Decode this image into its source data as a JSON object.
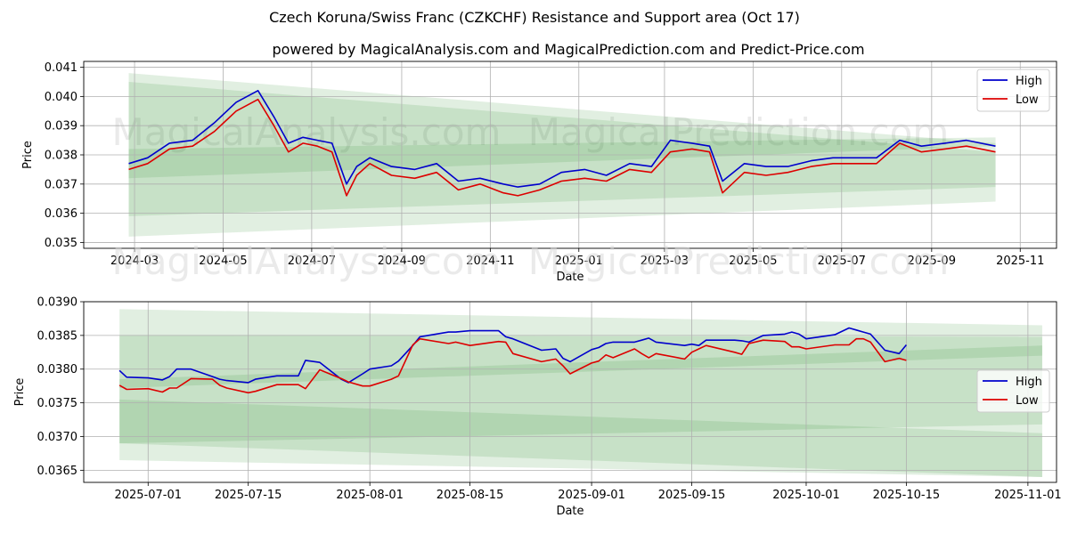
{
  "title": "Czech Koruna/Swiss Franc (CZKCHF) Resistance and Support area (Oct 17)",
  "subtitle": "powered by MagicalAnalysis.com and MagicalPrediction.com and Predict-Price.com",
  "watermarks": [
    "MagicalAnalysis.com",
    "MagicalPrediction.com"
  ],
  "colors": {
    "high": "#0000cc",
    "low": "#dd0000",
    "band": "#2e8b2e"
  },
  "chart_data": [
    {
      "type": "line",
      "xlabel": "Date",
      "ylabel": "Price",
      "xlim": [
        "2024-01-26",
        "2025-11-26"
      ],
      "ylim": [
        0.0348,
        0.0412
      ],
      "xticks": [
        "2024-03",
        "2024-05",
        "2024-07",
        "2024-09",
        "2024-11",
        "2025-01",
        "2025-03",
        "2025-05",
        "2025-07",
        "2025-09",
        "2025-11"
      ],
      "yticks": [
        "0.035",
        "0.036",
        "0.037",
        "0.038",
        "0.039",
        "0.040",
        "0.041"
      ],
      "legend": [
        "High",
        "Low"
      ],
      "legend_position": "top-right",
      "grid": true,
      "bands": [
        {
          "x": [
            "2024-02-26",
            "2025-10-15"
          ],
          "top": [
            0.0408,
            0.0384
          ],
          "bottom": [
            0.0352,
            0.0364
          ]
        },
        {
          "x": [
            "2024-02-26",
            "2025-10-15"
          ],
          "top": [
            0.0405,
            0.0381
          ],
          "bottom": [
            0.0359,
            0.0369
          ]
        },
        {
          "x": [
            "2024-02-26",
            "2025-10-15"
          ],
          "top": [
            0.0382,
            0.0386
          ],
          "bottom": [
            0.0372,
            0.0383
          ]
        }
      ],
      "series": [
        {
          "name": "High",
          "x": [
            "2024-02-26",
            "2024-03-10",
            "2024-03-25",
            "2024-04-10",
            "2024-04-25",
            "2024-05-10",
            "2024-05-25",
            "2024-06-05",
            "2024-06-15",
            "2024-06-25",
            "2024-07-05",
            "2024-07-15",
            "2024-07-25",
            "2024-08-01",
            "2024-08-10",
            "2024-08-25",
            "2024-09-10",
            "2024-09-25",
            "2024-10-10",
            "2024-10-25",
            "2024-11-10",
            "2024-11-20",
            "2024-12-05",
            "2024-12-20",
            "2025-01-05",
            "2025-01-20",
            "2025-02-05",
            "2025-02-20",
            "2025-03-05",
            "2025-03-20",
            "2025-04-01",
            "2025-04-10",
            "2025-04-25",
            "2025-05-10",
            "2025-05-25",
            "2025-06-10",
            "2025-06-25",
            "2025-07-10",
            "2025-07-25",
            "2025-08-10",
            "2025-08-25",
            "2025-09-10",
            "2025-09-25",
            "2025-10-15"
          ],
          "y": [
            0.0377,
            0.0379,
            0.0384,
            0.0385,
            0.0391,
            0.0398,
            0.0402,
            0.0393,
            0.0384,
            0.0386,
            0.0385,
            0.0384,
            0.037,
            0.0376,
            0.0379,
            0.0376,
            0.0375,
            0.0377,
            0.0371,
            0.0372,
            0.037,
            0.0369,
            0.037,
            0.0374,
            0.0375,
            0.0373,
            0.0377,
            0.0376,
            0.0385,
            0.0384,
            0.0383,
            0.0371,
            0.0377,
            0.0376,
            0.0376,
            0.0378,
            0.0379,
            0.0379,
            0.0379,
            0.0385,
            0.0383,
            0.0384,
            0.0385,
            0.0383
          ]
        },
        {
          "name": "Low",
          "x": [
            "2024-02-26",
            "2024-03-10",
            "2024-03-25",
            "2024-04-10",
            "2024-04-25",
            "2024-05-10",
            "2024-05-25",
            "2024-06-05",
            "2024-06-15",
            "2024-06-25",
            "2024-07-05",
            "2024-07-15",
            "2024-07-25",
            "2024-08-01",
            "2024-08-10",
            "2024-08-25",
            "2024-09-10",
            "2024-09-25",
            "2024-10-10",
            "2024-10-25",
            "2024-11-10",
            "2024-11-20",
            "2024-12-05",
            "2024-12-20",
            "2025-01-05",
            "2025-01-20",
            "2025-02-05",
            "2025-02-20",
            "2025-03-05",
            "2025-03-20",
            "2025-04-01",
            "2025-04-10",
            "2025-04-25",
            "2025-05-10",
            "2025-05-25",
            "2025-06-10",
            "2025-06-25",
            "2025-07-10",
            "2025-07-25",
            "2025-08-10",
            "2025-08-25",
            "2025-09-10",
            "2025-09-25",
            "2025-10-15"
          ],
          "y": [
            0.0375,
            0.0377,
            0.0382,
            0.0383,
            0.0388,
            0.0395,
            0.0399,
            0.039,
            0.0381,
            0.0384,
            0.0383,
            0.0381,
            0.0366,
            0.0373,
            0.0377,
            0.0373,
            0.0372,
            0.0374,
            0.0368,
            0.037,
            0.0367,
            0.0366,
            0.0368,
            0.0371,
            0.0372,
            0.0371,
            0.0375,
            0.0374,
            0.0381,
            0.0382,
            0.0381,
            0.0367,
            0.0374,
            0.0373,
            0.0374,
            0.0376,
            0.0377,
            0.0377,
            0.0377,
            0.0384,
            0.0381,
            0.0382,
            0.0383,
            0.0381
          ]
        }
      ]
    },
    {
      "type": "line",
      "xlabel": "Date",
      "ylabel": "Price",
      "xlim": [
        "2025-06-22",
        "2025-11-05"
      ],
      "ylim": [
        0.03632,
        0.039
      ],
      "xticks": [
        "2025-07-01",
        "2025-07-15",
        "2025-08-01",
        "2025-08-15",
        "2025-09-01",
        "2025-09-15",
        "2025-10-01",
        "2025-10-15",
        "2025-11-01"
      ],
      "yticks": [
        "0.0365",
        "0.0370",
        "0.0375",
        "0.0380",
        "0.0385",
        "0.0390"
      ],
      "legend": [
        "High",
        "Low"
      ],
      "legend_position": "center-right",
      "grid": true,
      "bands": [
        {
          "x": [
            "2025-06-27",
            "2025-11-03"
          ],
          "top": [
            0.03889,
            0.03865
          ],
          "bottom": [
            0.03665,
            0.0364
          ]
        },
        {
          "x": [
            "2025-06-27",
            "2025-11-03"
          ],
          "top": [
            0.03785,
            0.03835
          ],
          "bottom": [
            0.0369,
            0.03718
          ]
        },
        {
          "x": [
            "2025-06-27",
            "2025-11-03"
          ],
          "top": [
            0.0385,
            0.03848
          ],
          "bottom": [
            0.03772,
            0.0382
          ]
        },
        {
          "x": [
            "2025-06-27",
            "2025-11-03"
          ],
          "top": [
            0.03755,
            0.03705
          ],
          "bottom": [
            0.0369,
            0.0364
          ]
        }
      ],
      "series": [
        {
          "name": "High",
          "x": [
            "2025-06-27",
            "2025-06-28",
            "2025-07-01",
            "2025-07-03",
            "2025-07-04",
            "2025-07-05",
            "2025-07-07",
            "2025-07-10",
            "2025-07-11",
            "2025-07-12",
            "2025-07-15",
            "2025-07-16",
            "2025-07-19",
            "2025-07-22",
            "2025-07-23",
            "2025-07-25",
            "2025-07-28",
            "2025-07-29",
            "2025-07-31",
            "2025-08-01",
            "2025-08-04",
            "2025-08-05",
            "2025-08-07",
            "2025-08-08",
            "2025-08-12",
            "2025-08-13",
            "2025-08-15",
            "2025-08-19",
            "2025-08-20",
            "2025-08-21",
            "2025-08-25",
            "2025-08-27",
            "2025-08-28",
            "2025-08-29",
            "2025-09-01",
            "2025-09-02",
            "2025-09-03",
            "2025-09-04",
            "2025-09-07",
            "2025-09-08",
            "2025-09-09",
            "2025-09-10",
            "2025-09-14",
            "2025-09-15",
            "2025-09-16",
            "2025-09-17",
            "2025-09-21",
            "2025-09-22",
            "2025-09-23",
            "2025-09-25",
            "2025-09-28",
            "2025-09-29",
            "2025-09-30",
            "2025-10-01",
            "2025-10-05",
            "2025-10-07",
            "2025-10-08",
            "2025-10-09",
            "2025-10-10",
            "2025-10-12",
            "2025-10-14",
            "2025-10-15"
          ],
          "y": [
            0.03798,
            0.03788,
            0.03787,
            0.03784,
            0.03789,
            0.038,
            0.038,
            0.03789,
            0.03785,
            0.03783,
            0.0378,
            0.03785,
            0.0379,
            0.0379,
            0.03813,
            0.0381,
            0.03785,
            0.0378,
            0.03793,
            0.038,
            0.03805,
            0.03812,
            0.03835,
            0.03848,
            0.03855,
            0.03855,
            0.03857,
            0.03857,
            0.03848,
            0.03845,
            0.03828,
            0.0383,
            0.03816,
            0.03811,
            0.03829,
            0.03832,
            0.03838,
            0.0384,
            0.0384,
            0.03843,
            0.03846,
            0.0384,
            0.03835,
            0.03837,
            0.03835,
            0.03843,
            0.03843,
            0.03842,
            0.0384,
            0.0385,
            0.03852,
            0.03855,
            0.03852,
            0.03845,
            0.03851,
            0.03861,
            0.03858,
            0.03855,
            0.03852,
            0.03828,
            0.03823,
            0.03836
          ]
        },
        {
          "name": "Low",
          "x": [
            "2025-06-27",
            "2025-06-28",
            "2025-07-01",
            "2025-07-03",
            "2025-07-04",
            "2025-07-05",
            "2025-07-07",
            "2025-07-10",
            "2025-07-11",
            "2025-07-12",
            "2025-07-15",
            "2025-07-16",
            "2025-07-19",
            "2025-07-22",
            "2025-07-23",
            "2025-07-25",
            "2025-07-28",
            "2025-07-29",
            "2025-07-31",
            "2025-08-01",
            "2025-08-04",
            "2025-08-05",
            "2025-08-07",
            "2025-08-08",
            "2025-08-12",
            "2025-08-13",
            "2025-08-15",
            "2025-08-19",
            "2025-08-20",
            "2025-08-21",
            "2025-08-25",
            "2025-08-27",
            "2025-08-28",
            "2025-08-29",
            "2025-09-01",
            "2025-09-02",
            "2025-09-03",
            "2025-09-04",
            "2025-09-07",
            "2025-09-08",
            "2025-09-09",
            "2025-09-10",
            "2025-09-14",
            "2025-09-15",
            "2025-09-16",
            "2025-09-17",
            "2025-09-21",
            "2025-09-22",
            "2025-09-23",
            "2025-09-25",
            "2025-09-28",
            "2025-09-29",
            "2025-09-30",
            "2025-10-01",
            "2025-10-05",
            "2025-10-07",
            "2025-10-08",
            "2025-10-09",
            "2025-10-10",
            "2025-10-12",
            "2025-10-14",
            "2025-10-15"
          ],
          "y": [
            0.03776,
            0.0377,
            0.03771,
            0.03766,
            0.03772,
            0.03772,
            0.03786,
            0.03785,
            0.03776,
            0.03772,
            0.03765,
            0.03767,
            0.03777,
            0.03777,
            0.03771,
            0.03799,
            0.03786,
            0.03781,
            0.03775,
            0.03775,
            0.03785,
            0.0379,
            0.03836,
            0.03845,
            0.03838,
            0.0384,
            0.03835,
            0.03841,
            0.0384,
            0.03823,
            0.03811,
            0.03815,
            0.03805,
            0.03793,
            0.03809,
            0.03812,
            0.03821,
            0.03817,
            0.0383,
            0.03823,
            0.03817,
            0.03823,
            0.03815,
            0.03825,
            0.0383,
            0.03835,
            0.03825,
            0.03822,
            0.03838,
            0.03843,
            0.03841,
            0.03833,
            0.03833,
            0.0383,
            0.03836,
            0.03836,
            0.03845,
            0.03845,
            0.0384,
            0.03811,
            0.03816,
            0.03813
          ]
        }
      ]
    }
  ]
}
